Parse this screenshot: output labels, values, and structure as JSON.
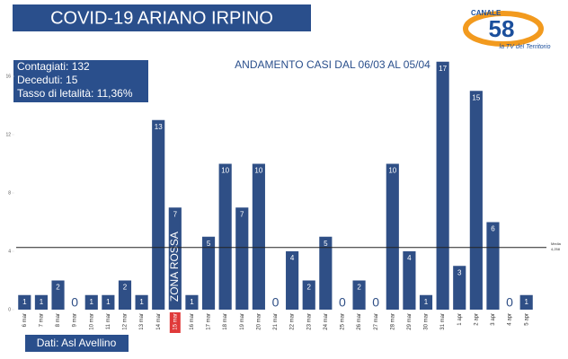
{
  "header": {
    "title": "COVID-19 ARIANO IRPINO"
  },
  "logo": {
    "top": "CANALE",
    "number": "58",
    "tagline": "la TV del Territorio"
  },
  "stats": [
    "Contagiati: 132",
    "Deceduti: 15",
    "Tasso di letalità: 11,36%"
  ],
  "source": "Dati: Asl Avellino",
  "chart_data": {
    "type": "bar",
    "title": "ANDAMENTO CASI DAL 06/03 AL 05/04",
    "categories": [
      "6 mar",
      "7 mar",
      "8 mar",
      "9 mar",
      "10 mar",
      "11 mar",
      "12 mar",
      "13 mar",
      "14 mar",
      "15 mar",
      "16 mar",
      "17 mar",
      "18 mar",
      "19 mar",
      "20 mar",
      "21 mar",
      "22 mar",
      "23 mar",
      "24 mar",
      "25 mar",
      "26 mar",
      "27 mar",
      "28 mar",
      "29 mar",
      "30 mar",
      "31 mar",
      "1 apr",
      "2 apr",
      "3 apr",
      "4 apr",
      "5 apr"
    ],
    "values": [
      1,
      1,
      2,
      0,
      1,
      1,
      2,
      1,
      13,
      7,
      1,
      5,
      10,
      7,
      10,
      0,
      4,
      2,
      5,
      0,
      2,
      0,
      10,
      4,
      1,
      17,
      3,
      15,
      6,
      0,
      1
    ],
    "color": "#2f4f86",
    "ylim": [
      0,
      18
    ],
    "yticks": [
      0,
      4,
      8,
      12,
      16
    ],
    "mean": {
      "name": "Media",
      "value": 4.258,
      "label": "4,258"
    },
    "highlight": "15 mar",
    "highlight_color": "#e03a3a",
    "annotation": "ZONA ROSSA"
  }
}
